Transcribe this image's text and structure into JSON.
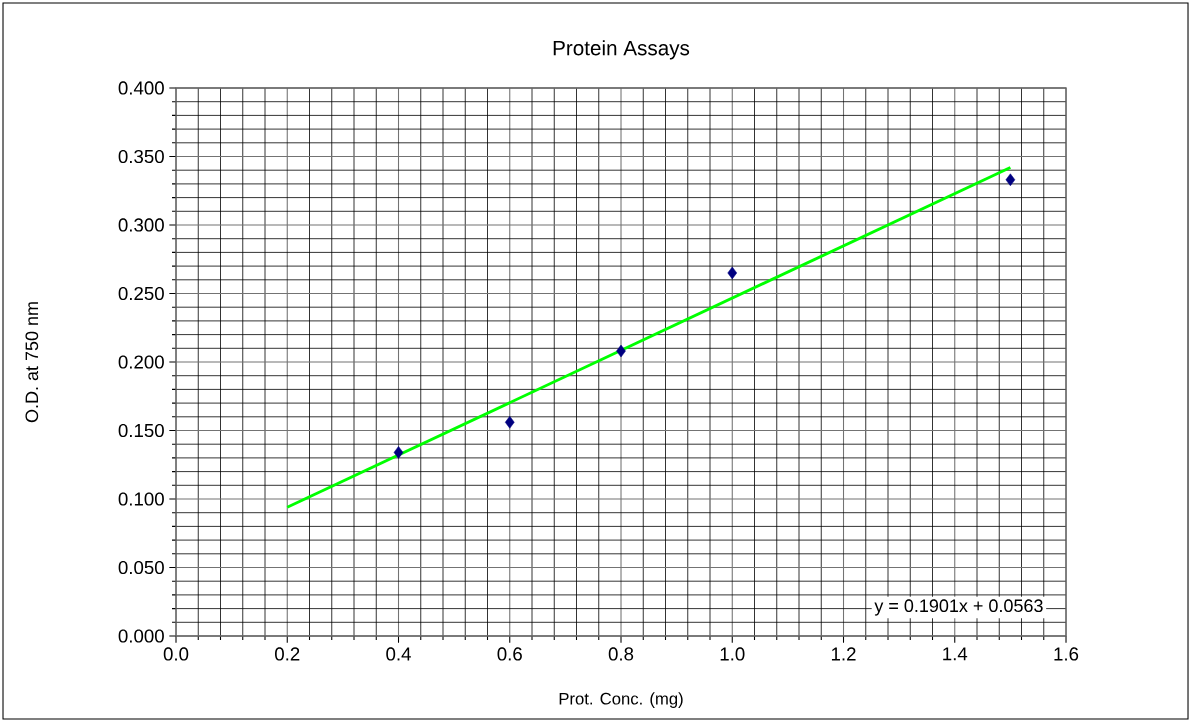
{
  "chart_data": {
    "type": "scatter",
    "title": "Protein Assays",
    "xlabel": "Prot. Conc. (mg)",
    "ylabel": "O.D. at 750 nm",
    "series": [
      {
        "color": "#000080",
        "marker": "diamond",
        "x": [
          0.4,
          0.6,
          0.8,
          1.0,
          1.5
        ],
        "values": [
          0.134,
          0.156,
          0.208,
          0.265,
          0.333
        ]
      },
      {
        "type": "line",
        "color": "#00ff00",
        "x": [
          0.2,
          1.5
        ],
        "values": [
          0.094,
          0.342
        ]
      }
    ],
    "annotations": [
      "y = 0.1901x + 0.0563"
    ],
    "xlim": [
      0,
      1.6
    ],
    "ylim": [
      0,
      0.4
    ],
    "xticks": [
      {
        "value": 0,
        "label": "0.0"
      },
      0.2,
      0.4,
      0.6,
      0.8,
      {
        "value": 1,
        "label": "1.0"
      },
      1.2,
      1.4,
      1.6
    ],
    "yticks": [
      {
        "value": 0,
        "label": "0.000"
      },
      {
        "value": 0.05,
        "label": "0.050"
      },
      {
        "value": 0.1,
        "label": "0.100"
      },
      {
        "value": 0.15,
        "label": "0.150"
      },
      {
        "value": 0.2,
        "label": "0.200"
      },
      {
        "value": 0.25,
        "label": "0.250"
      },
      {
        "value": 0.3,
        "label": "0.300"
      },
      {
        "value": 0.35,
        "label": "0.350"
      },
      {
        "value": 0.4,
        "label": "0.400"
      }
    ],
    "grid": true
  }
}
